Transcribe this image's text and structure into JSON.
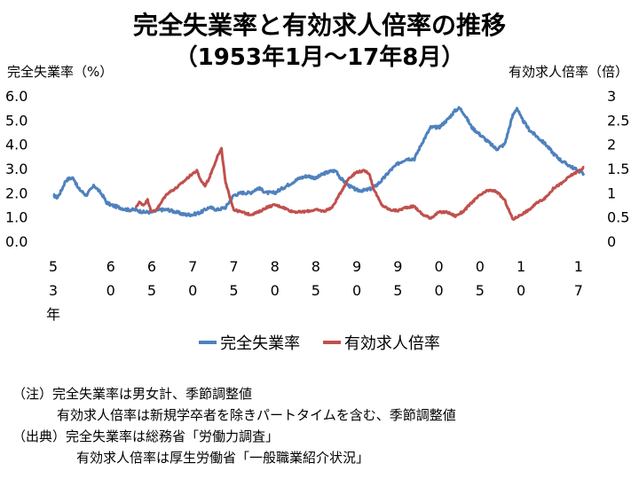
{
  "title_line1": "完全失業率と有効求人倍率の推移",
  "title_line2": "（1953年1月～17年8月）",
  "chart_data": {
    "type": "line",
    "ylabel_left": "完全失業率（%）",
    "ylabel_right": "有効求人倍率（倍）",
    "ylim_left": [
      0,
      6
    ],
    "ylim_right": [
      0,
      3
    ],
    "yticks_left": [
      "0.0",
      "1.0",
      "2.0",
      "3.0",
      "4.0",
      "5.0",
      "6.0"
    ],
    "yticks_right": [
      "0",
      "0.5",
      "1",
      "1.5",
      "2",
      "2.5",
      "3"
    ],
    "xlim": [
      1953,
      2017.67
    ],
    "xticks": [
      {
        "year": 1953,
        "lines": [
          "5",
          "3",
          "年"
        ]
      },
      {
        "year": 1960,
        "lines": [
          "6",
          "0"
        ]
      },
      {
        "year": 1965,
        "lines": [
          "6",
          "5"
        ]
      },
      {
        "year": 1970,
        "lines": [
          "7",
          "0"
        ]
      },
      {
        "year": 1975,
        "lines": [
          "7",
          "5"
        ]
      },
      {
        "year": 1980,
        "lines": [
          "8",
          "0"
        ]
      },
      {
        "year": 1985,
        "lines": [
          "8",
          "5"
        ]
      },
      {
        "year": 1990,
        "lines": [
          "9",
          "0"
        ]
      },
      {
        "year": 1995,
        "lines": [
          "9",
          "5"
        ]
      },
      {
        "year": 2000,
        "lines": [
          "0",
          "0"
        ]
      },
      {
        "year": 2005,
        "lines": [
          "0",
          "5"
        ]
      },
      {
        "year": 2010,
        "lines": [
          "1",
          "0"
        ]
      },
      {
        "year": 2017,
        "lines": [
          "1",
          "7"
        ]
      }
    ],
    "series": [
      {
        "name": "完全失業率",
        "axis": "left",
        "color": "#4f81bd",
        "x": [
          1953.0,
          1953.5,
          1954.0,
          1954.5,
          1955.0,
          1955.5,
          1956.0,
          1957.0,
          1957.5,
          1958.0,
          1958.5,
          1959.0,
          1959.5,
          1960.0,
          1961.0,
          1962.0,
          1963.0,
          1964.0,
          1965.0,
          1966.0,
          1967.0,
          1968.0,
          1969.0,
          1970.0,
          1971.0,
          1972.0,
          1973.0,
          1974.0,
          1975.0,
          1976.0,
          1977.0,
          1978.0,
          1979.0,
          1980.0,
          1981.0,
          1982.0,
          1983.0,
          1984.0,
          1985.0,
          1986.0,
          1987.0,
          1987.5,
          1988.0,
          1989.0,
          1990.0,
          1991.0,
          1992.0,
          1993.0,
          1994.0,
          1995.0,
          1996.0,
          1997.0,
          1998.0,
          1999.0,
          2000.0,
          2001.0,
          2002.0,
          2002.5,
          2003.0,
          2004.0,
          2005.0,
          2006.0,
          2007.0,
          2008.0,
          2009.0,
          2009.5,
          2010.0,
          2011.0,
          2012.0,
          2013.0,
          2014.0,
          2015.0,
          2016.0,
          2017.0,
          2017.67
        ],
        "y": [
          1.9,
          1.8,
          2.1,
          2.5,
          2.6,
          2.6,
          2.2,
          1.9,
          2.1,
          2.3,
          2.1,
          1.9,
          1.6,
          1.5,
          1.4,
          1.3,
          1.3,
          1.2,
          1.2,
          1.3,
          1.3,
          1.2,
          1.1,
          1.1,
          1.2,
          1.4,
          1.3,
          1.4,
          1.9,
          2.0,
          2.0,
          2.2,
          2.0,
          2.0,
          2.2,
          2.4,
          2.6,
          2.7,
          2.6,
          2.8,
          2.9,
          2.9,
          2.6,
          2.3,
          2.1,
          2.1,
          2.2,
          2.5,
          2.9,
          3.2,
          3.4,
          3.4,
          4.1,
          4.7,
          4.7,
          5.0,
          5.4,
          5.5,
          5.3,
          4.7,
          4.4,
          4.1,
          3.8,
          4.0,
          5.2,
          5.5,
          5.1,
          4.6,
          4.3,
          4.0,
          3.6,
          3.3,
          3.1,
          2.9,
          2.8
        ]
      },
      {
        "name": "有効求人倍率",
        "axis": "right",
        "color": "#c0504d",
        "x": [
          1963.0,
          1963.5,
          1964.0,
          1964.5,
          1965.0,
          1965.5,
          1966.0,
          1966.5,
          1967.0,
          1968.0,
          1969.0,
          1970.0,
          1970.5,
          1971.0,
          1971.5,
          1972.0,
          1973.0,
          1973.5,
          1974.0,
          1975.0,
          1976.0,
          1977.0,
          1978.0,
          1979.0,
          1980.0,
          1981.0,
          1982.0,
          1983.0,
          1984.0,
          1985.0,
          1986.0,
          1987.0,
          1988.0,
          1989.0,
          1990.0,
          1991.0,
          1991.5,
          1992.0,
          1993.0,
          1994.0,
          1995.0,
          1996.0,
          1997.0,
          1998.0,
          1999.0,
          2000.0,
          2001.0,
          2002.0,
          2003.0,
          2004.0,
          2005.0,
          2006.0,
          2007.0,
          2008.0,
          2009.0,
          2010.0,
          2011.0,
          2012.0,
          2013.0,
          2014.0,
          2015.0,
          2016.0,
          2017.0,
          2017.67
        ],
        "y": [
          0.7,
          0.8,
          0.75,
          0.85,
          0.6,
          0.65,
          0.75,
          0.9,
          1.0,
          1.1,
          1.25,
          1.4,
          1.45,
          1.25,
          1.15,
          1.3,
          1.75,
          1.9,
          1.2,
          0.65,
          0.6,
          0.55,
          0.6,
          0.7,
          0.75,
          0.7,
          0.62,
          0.6,
          0.62,
          0.65,
          0.62,
          0.7,
          1.0,
          1.3,
          1.43,
          1.45,
          1.4,
          1.1,
          0.75,
          0.65,
          0.63,
          0.7,
          0.72,
          0.55,
          0.48,
          0.6,
          0.6,
          0.52,
          0.62,
          0.8,
          0.95,
          1.05,
          1.03,
          0.85,
          0.45,
          0.55,
          0.65,
          0.8,
          0.9,
          1.1,
          1.2,
          1.35,
          1.45,
          1.52
        ]
      }
    ]
  },
  "legend": [
    "完全失業率",
    "有効求人倍率"
  ],
  "notes": [
    "（注）完全失業率は男女計、季節調整値",
    "有効求人倍率は新規学卒者を除きパートタイムを含む、季節調整値",
    "（出典）完全失業率は総務省「労働力調査」",
    "有効求人倍率は厚生労働省「一般職業紹介状況」"
  ]
}
